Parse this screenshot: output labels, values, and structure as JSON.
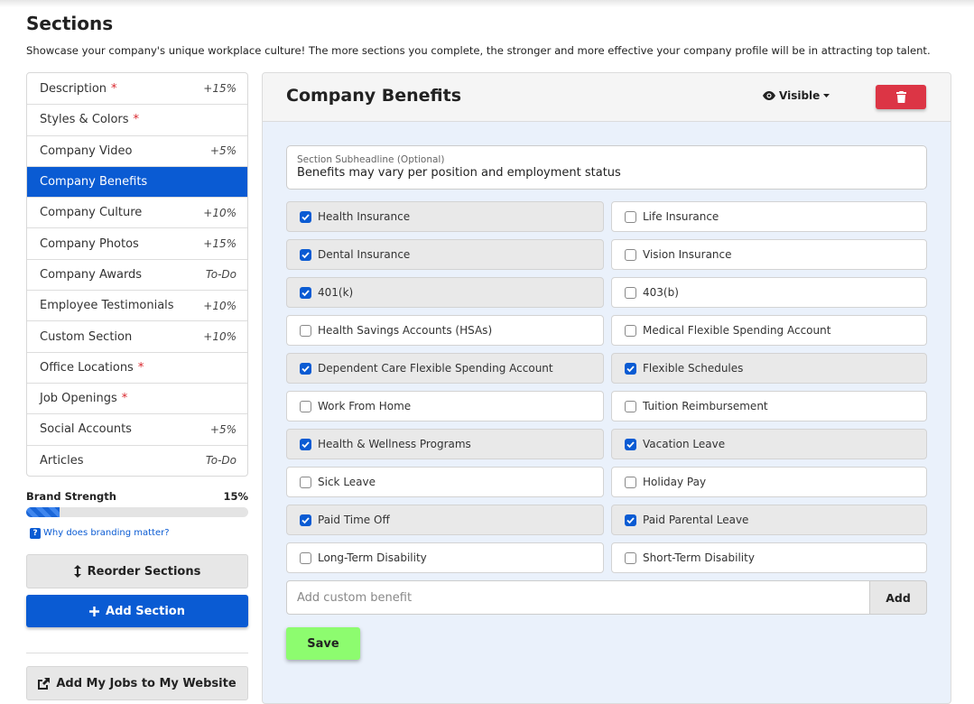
{
  "header": {
    "title": "Sections",
    "description": "Showcase your company's unique workplace culture! The more sections you complete, the stronger and more effective your company profile will be in attracting top talent."
  },
  "nav": {
    "items": [
      {
        "label": "Description",
        "marker": "*",
        "badge": "+15%"
      },
      {
        "label": "Styles & Colors",
        "marker": "*"
      },
      {
        "label": "Company Video",
        "badge": "+5%"
      },
      {
        "label": "Company Benefits",
        "active": true
      },
      {
        "label": "Company Culture",
        "badge": "+10%"
      },
      {
        "label": "Company Photos",
        "badge": "+15%"
      },
      {
        "label": "Company Awards",
        "badge": "To-Do"
      },
      {
        "label": "Employee Testimonials",
        "badge": "+10%"
      },
      {
        "label": "Custom Section",
        "badge": "+10%"
      },
      {
        "label": "Office Locations",
        "marker": "*"
      },
      {
        "label": "Job Openings",
        "marker": "*"
      },
      {
        "label": "Social Accounts",
        "badge": "+5%"
      },
      {
        "label": "Articles",
        "badge": "To-Do"
      }
    ]
  },
  "brand_strength": {
    "label": "Brand Strength",
    "value": 15,
    "value_label": "15%",
    "help_icon": "?",
    "help_link": "Why does branding matter?"
  },
  "buttons": {
    "reorder": "Reorder Sections",
    "add_section": "Add Section",
    "embed": "Add My Jobs to My Website"
  },
  "panel": {
    "title": "Company Benefits",
    "visibility": "Visible",
    "subheadline_label": "Section Subheadline (Optional)",
    "subheadline": "Benefits may vary per position and employment status",
    "benefits": [
      {
        "label": "Health Insurance",
        "checked": true
      },
      {
        "label": "Life Insurance",
        "checked": false
      },
      {
        "label": "Dental Insurance",
        "checked": true
      },
      {
        "label": "Vision Insurance",
        "checked": false
      },
      {
        "label": "401(k)",
        "checked": true
      },
      {
        "label": "403(b)",
        "checked": false
      },
      {
        "label": "Health Savings Accounts (HSAs)",
        "checked": false
      },
      {
        "label": "Medical Flexible Spending Account",
        "checked": false
      },
      {
        "label": "Dependent Care Flexible Spending Account",
        "checked": true
      },
      {
        "label": "Flexible Schedules",
        "checked": true
      },
      {
        "label": "Work From Home",
        "checked": false
      },
      {
        "label": "Tuition Reimbursement",
        "checked": false
      },
      {
        "label": "Health & Wellness Programs",
        "checked": true
      },
      {
        "label": "Vacation Leave",
        "checked": true
      },
      {
        "label": "Sick Leave",
        "checked": false
      },
      {
        "label": "Holiday Pay",
        "checked": false
      },
      {
        "label": "Paid Time Off",
        "checked": true
      },
      {
        "label": "Paid Parental Leave",
        "checked": true
      },
      {
        "label": "Long-Term Disability",
        "checked": false
      },
      {
        "label": "Short-Term Disability",
        "checked": false
      }
    ],
    "custom_placeholder": "Add custom benefit",
    "custom_add": "Add",
    "save": "Save"
  }
}
